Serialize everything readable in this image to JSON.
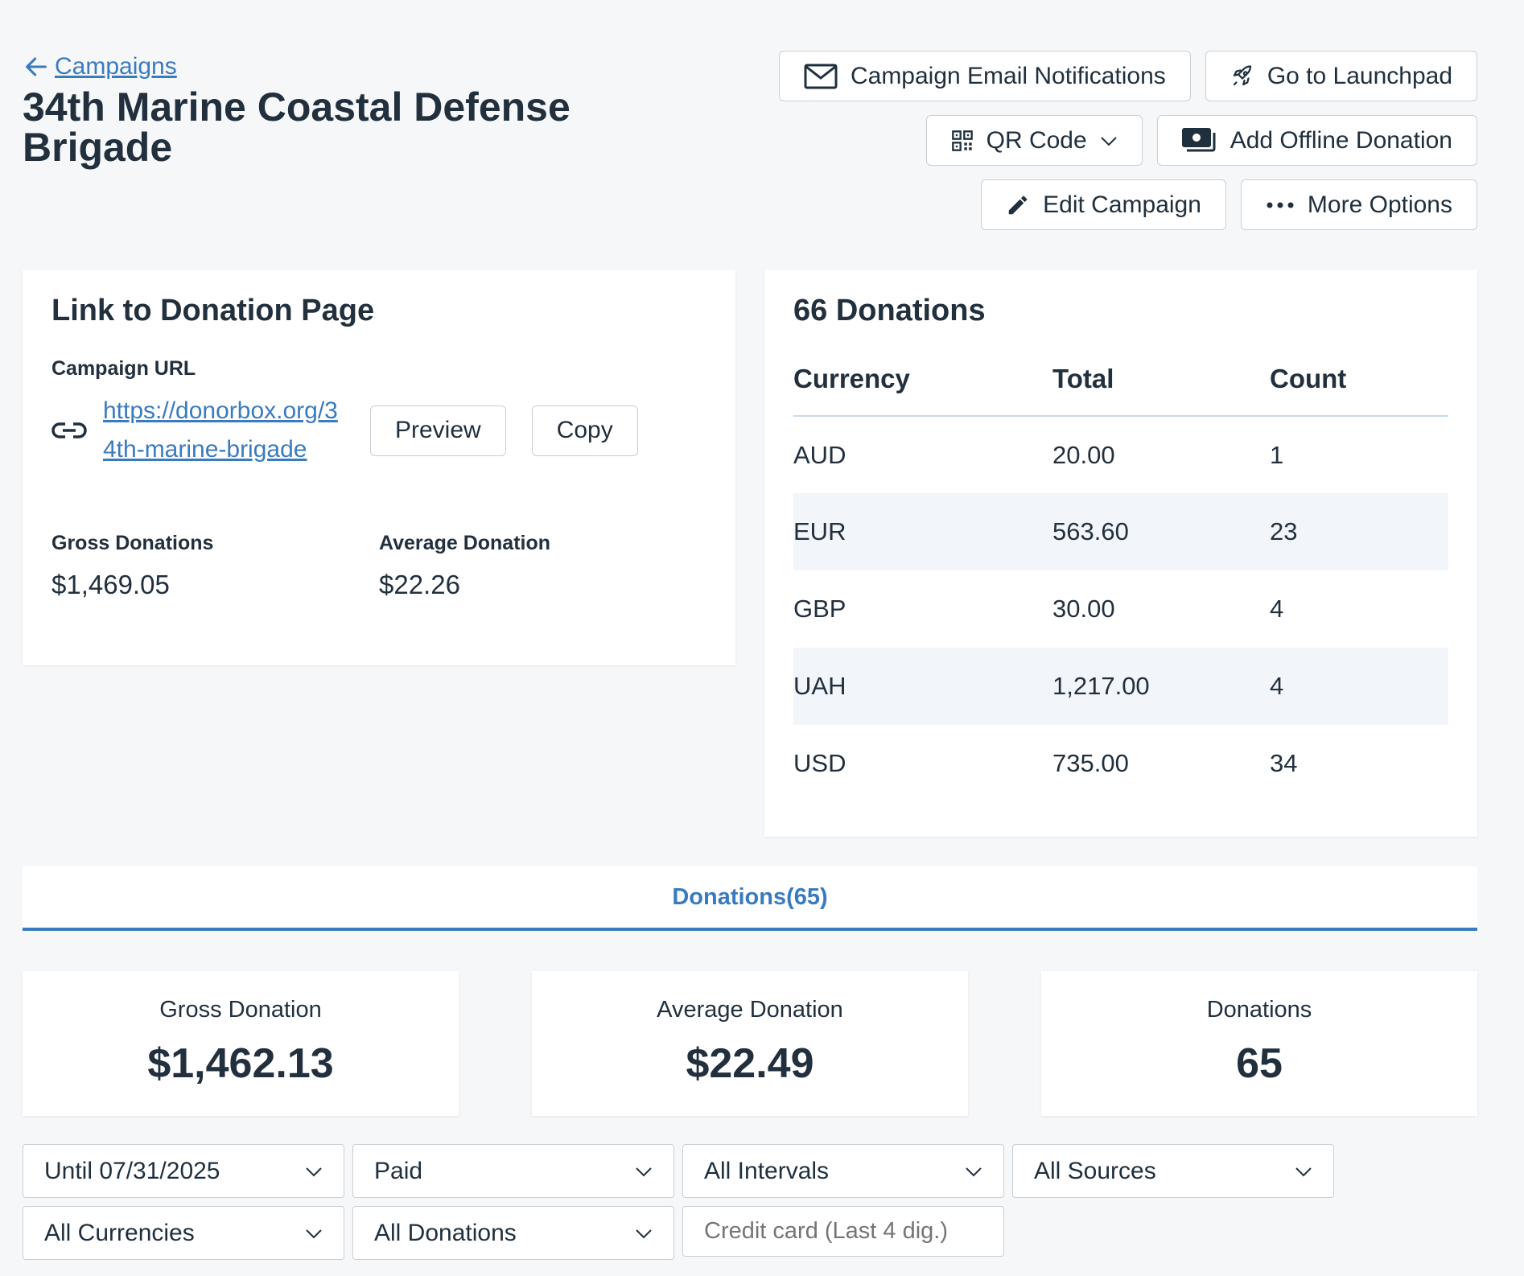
{
  "header": {
    "back_label": "Campaigns",
    "title": "34th Marine Coastal Defense Brigade",
    "actions": {
      "email_notifications": "Campaign Email Notifications",
      "launchpad": "Go to Launchpad",
      "qr_code": "QR Code",
      "offline_donation": "Add Offline Donation",
      "edit_campaign": "Edit Campaign",
      "more_options": "More Options"
    }
  },
  "link_card": {
    "title": "Link to Donation Page",
    "url_label": "Campaign URL",
    "url": "https://donorbox.org/34th-marine-brigade",
    "preview_label": "Preview",
    "copy_label": "Copy",
    "gross_label": "Gross Donations",
    "gross_value": "$1,469.05",
    "avg_label": "Average Donation",
    "avg_value": "$22.26"
  },
  "donations_card": {
    "title": "66 Donations",
    "columns": [
      "Currency",
      "Total",
      "Count"
    ],
    "rows": [
      {
        "currency": "AUD",
        "total": "20.00",
        "count": "1"
      },
      {
        "currency": "EUR",
        "total": "563.60",
        "count": "23"
      },
      {
        "currency": "GBP",
        "total": "30.00",
        "count": "4"
      },
      {
        "currency": "UAH",
        "total": "1,217.00",
        "count": "4"
      },
      {
        "currency": "USD",
        "total": "735.00",
        "count": "34"
      }
    ]
  },
  "tabs": {
    "donations": "Donations(65)"
  },
  "summary": {
    "gross_label": "Gross Donation",
    "gross_value": "$1,462.13",
    "avg_label": "Average Donation",
    "avg_value": "$22.49",
    "count_label": "Donations",
    "count_value": "65"
  },
  "filters": {
    "date": "Until 07/31/2025",
    "status": "Paid",
    "interval": "All Intervals",
    "source": "All Sources",
    "currency": "All Currencies",
    "type": "All Donations",
    "card_placeholder": "Credit card (Last 4 dig.)"
  },
  "colors": {
    "accent": "#3a7bbf",
    "text": "#22303e",
    "background": "#f6f7f9"
  }
}
